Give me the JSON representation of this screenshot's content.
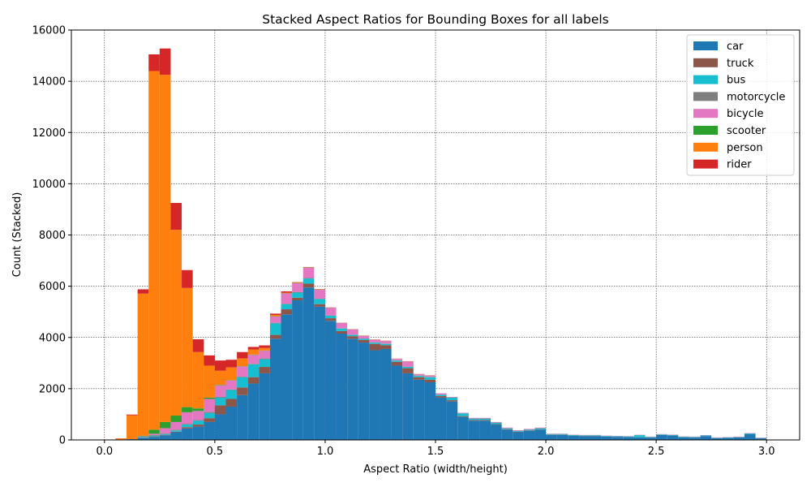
{
  "chart_data": {
    "type": "bar",
    "stacked": true,
    "title": "Stacked Aspect Ratios for Bounding Boxes for all labels",
    "xlabel": "Aspect Ratio (width/height)",
    "ylabel": "Count (Stacked)",
    "xlim": [
      -0.15,
      3.15
    ],
    "ylim": [
      0,
      16000
    ],
    "xticks": [
      0.0,
      0.5,
      1.0,
      1.5,
      2.0,
      2.5,
      3.0
    ],
    "xtick_labels": [
      "0.0",
      "0.5",
      "1.0",
      "1.5",
      "2.0",
      "2.5",
      "3.0"
    ],
    "yticks": [
      0,
      2000,
      4000,
      6000,
      8000,
      10000,
      12000,
      14000,
      16000
    ],
    "ytick_labels": [
      "0",
      "2000",
      "4000",
      "6000",
      "8000",
      "10000",
      "12000",
      "14000",
      "16000"
    ],
    "grid": true,
    "legend_position": "top-right",
    "bin_width": 0.05,
    "x": [
      0.0,
      0.05,
      0.1,
      0.15,
      0.2,
      0.25,
      0.3,
      0.35,
      0.4,
      0.45,
      0.5,
      0.55,
      0.6,
      0.65,
      0.7,
      0.75,
      0.8,
      0.85,
      0.9,
      0.95,
      1.0,
      1.05,
      1.1,
      1.15,
      1.2,
      1.25,
      1.3,
      1.35,
      1.4,
      1.45,
      1.5,
      1.55,
      1.6,
      1.65,
      1.7,
      1.75,
      1.8,
      1.85,
      1.9,
      1.95,
      2.0,
      2.05,
      2.1,
      2.15,
      2.2,
      2.25,
      2.3,
      2.35,
      2.4,
      2.45,
      2.5,
      2.55,
      2.6,
      2.65,
      2.7,
      2.75,
      2.8,
      2.85,
      2.9,
      2.95
    ],
    "series": [
      {
        "name": "car",
        "color": "#1f77b4",
        "values": [
          0,
          0,
          30,
          80,
          120,
          180,
          300,
          450,
          520,
          700,
          1000,
          1300,
          1750,
          2200,
          2600,
          3950,
          4900,
          5450,
          5950,
          5200,
          4650,
          4150,
          3950,
          3800,
          3500,
          3550,
          2900,
          2600,
          2350,
          2250,
          1650,
          1500,
          900,
          750,
          750,
          600,
          400,
          300,
          350,
          400,
          200,
          200,
          160,
          150,
          150,
          130,
          120,
          110,
          100,
          90,
          190,
          170,
          100,
          90,
          150,
          70,
          80,
          100,
          230,
          60
        ]
      },
      {
        "name": "truck",
        "color": "#8c564b",
        "values": [
          0,
          0,
          0,
          10,
          20,
          20,
          20,
          50,
          80,
          150,
          350,
          300,
          300,
          250,
          250,
          150,
          200,
          100,
          150,
          100,
          100,
          100,
          100,
          100,
          250,
          150,
          150,
          200,
          100,
          100,
          60,
          50,
          30,
          30,
          30,
          20,
          20,
          20,
          20,
          10,
          10,
          10,
          10,
          10,
          10,
          5,
          5,
          5,
          5,
          5,
          5,
          5,
          5,
          5,
          5,
          5,
          5,
          5,
          5,
          5
        ]
      },
      {
        "name": "bus",
        "color": "#17becf",
        "values": [
          0,
          0,
          0,
          20,
          30,
          30,
          50,
          100,
          150,
          200,
          300,
          350,
          400,
          500,
          300,
          450,
          200,
          200,
          200,
          200,
          100,
          100,
          50,
          50,
          50,
          50,
          50,
          50,
          50,
          100,
          50,
          100,
          100,
          50,
          50,
          50,
          30,
          30,
          30,
          40,
          20,
          20,
          20,
          20,
          20,
          20,
          20,
          20,
          80,
          20,
          20,
          20,
          20,
          20,
          20,
          10,
          10,
          10,
          20,
          10
        ]
      },
      {
        "name": "motorcycle",
        "color": "#7f7f7f",
        "values": [
          0,
          0,
          0,
          10,
          20,
          30,
          30,
          30,
          30,
          50,
          30,
          20,
          20,
          20,
          30,
          20,
          20,
          20,
          20,
          10,
          10,
          10,
          10,
          10,
          10,
          10,
          10,
          10,
          10,
          10,
          10,
          10,
          10,
          10,
          10,
          10,
          10,
          10,
          10,
          10,
          5,
          5,
          5,
          5,
          5,
          5,
          5,
          5,
          5,
          5,
          5,
          5,
          5,
          5,
          5,
          5,
          5,
          5,
          5,
          5
        ]
      },
      {
        "name": "bicycle",
        "color": "#e377c2",
        "values": [
          0,
          0,
          0,
          20,
          50,
          200,
          300,
          450,
          350,
          500,
          450,
          350,
          400,
          350,
          300,
          250,
          400,
          350,
          400,
          350,
          300,
          200,
          200,
          100,
          100,
          100,
          50,
          200,
          50,
          50,
          50,
          20,
          20,
          20,
          20,
          20,
          20,
          20,
          20,
          20,
          10,
          10,
          10,
          10,
          10,
          10,
          10,
          10,
          10,
          10,
          10,
          10,
          10,
          10,
          10,
          10,
          10,
          10,
          10,
          10
        ]
      },
      {
        "name": "scooter",
        "color": "#2ca02c",
        "values": [
          0,
          0,
          0,
          20,
          160,
          240,
          250,
          200,
          100,
          50,
          20,
          10,
          10,
          10,
          10,
          10,
          10,
          10,
          10,
          10,
          5,
          5,
          5,
          5,
          5,
          5,
          5,
          5,
          5,
          5,
          0,
          0,
          0,
          0,
          0,
          0,
          0,
          0,
          0,
          0,
          0,
          0,
          0,
          0,
          0,
          0,
          0,
          0,
          0,
          0,
          0,
          0,
          0,
          0,
          0,
          0,
          0,
          0,
          0,
          0
        ]
      },
      {
        "name": "person",
        "color": "#ff7f0e",
        "values": [
          0,
          50,
          930,
          5550,
          14000,
          13550,
          7250,
          4650,
          2200,
          1250,
          550,
          500,
          300,
          200,
          100,
          50,
          20,
          20,
          10,
          10,
          5,
          5,
          5,
          5,
          5,
          5,
          5,
          5,
          5,
          5,
          0,
          0,
          0,
          0,
          0,
          0,
          0,
          0,
          0,
          0,
          0,
          0,
          0,
          0,
          0,
          0,
          0,
          0,
          0,
          0,
          0,
          0,
          0,
          0,
          0,
          0,
          0,
          0,
          0,
          0
        ]
      },
      {
        "name": "rider",
        "color": "#d62728",
        "values": [
          0,
          10,
          30,
          170,
          650,
          1030,
          1050,
          700,
          500,
          400,
          400,
          300,
          250,
          100,
          100,
          50,
          50,
          10,
          10,
          10,
          5,
          5,
          5,
          5,
          5,
          5,
          5,
          5,
          5,
          5,
          0,
          0,
          0,
          0,
          0,
          0,
          0,
          0,
          0,
          0,
          0,
          0,
          0,
          0,
          0,
          0,
          0,
          0,
          0,
          0,
          0,
          0,
          0,
          0,
          0,
          0,
          0,
          0,
          0,
          0
        ]
      }
    ]
  }
}
